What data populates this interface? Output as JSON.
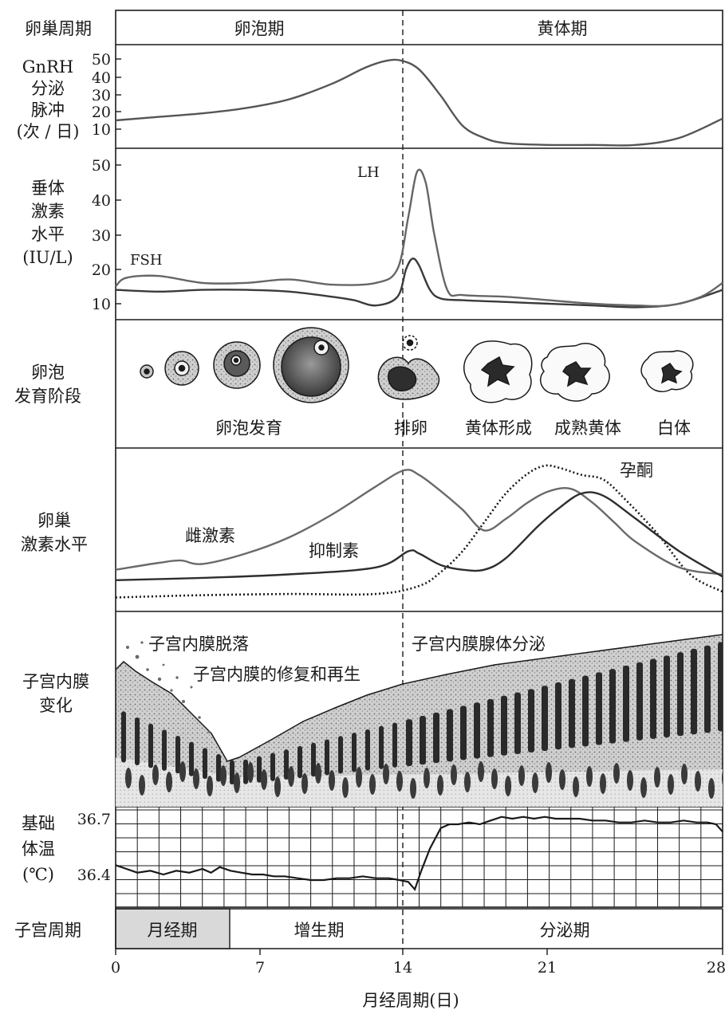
{
  "rows": {
    "ovarian_cycle": {
      "label": "卵巢周期",
      "follicular": "卵泡期",
      "luteal": "黄体期"
    },
    "gnrh": {
      "label_lines": [
        "GnRH",
        "分泌",
        "脉冲",
        "(次 / 日)"
      ],
      "ticks": [
        "50",
        "40",
        "30",
        "20",
        "10"
      ]
    },
    "pituitary": {
      "label_lines": [
        "垂体",
        "激素",
        "水平",
        "(IU/L)"
      ],
      "ticks": [
        "50",
        "40",
        "30",
        "20",
        "10"
      ],
      "lh_label": "LH",
      "fsh_label": "FSH"
    },
    "follicle": {
      "label_lines": [
        "卵泡",
        "发育阶段"
      ],
      "stage_labels": [
        "卵泡发育",
        "排卵",
        "黄体形成",
        "成熟黄体",
        "白体"
      ]
    },
    "ovarian_hormones": {
      "label_lines": [
        "卵巢",
        "激素水平"
      ],
      "estrogen_label": "雌激素",
      "inhibin_label": "抑制素",
      "progesterone_label": "孕酮"
    },
    "endometrium": {
      "label_lines": [
        "子宫内膜",
        "变化"
      ],
      "shedding": "子宫内膜脱落",
      "repair": "子宫内膜的修复和再生",
      "secretion": "子宫内膜腺体分泌"
    },
    "bbt": {
      "label_lines": [
        "基础",
        "体温",
        "(℃)"
      ],
      "ticks": [
        "36.7",
        "36.4"
      ]
    },
    "uterine_cycle": {
      "label": "子宫周期",
      "menstrual": "月经期",
      "proliferative": "增生期",
      "secretory": "分泌期"
    }
  },
  "x_axis": {
    "ticks": [
      "0",
      "7",
      "14",
      "21",
      "28"
    ],
    "label": "月经周期(日)"
  },
  "chart_data": {
    "type": "line",
    "x_range": [
      0,
      28
    ],
    "ovulation_day": 14,
    "gnrh_pulses": {
      "ylim": [
        0,
        55
      ],
      "x": [
        0,
        2,
        4,
        6,
        8,
        10,
        11.5,
        12.5,
        13.2,
        14,
        15,
        16,
        17,
        18,
        20,
        22,
        24,
        26,
        28
      ],
      "values": [
        15,
        17,
        19,
        22,
        27,
        36,
        45,
        49,
        49,
        44,
        29,
        12,
        5,
        2,
        1,
        1,
        1,
        5,
        16
      ]
    },
    "lh": {
      "name": "LH",
      "ylim": [
        5,
        55
      ],
      "x": [
        0,
        0.5,
        2,
        4,
        6,
        8,
        10,
        12,
        13,
        13.5,
        13.9,
        14.3,
        14.7,
        15.3,
        16,
        18,
        20,
        22,
        24,
        25.5,
        27,
        28
      ],
      "values": [
        15,
        17.5,
        18,
        16,
        16,
        17,
        15.5,
        16,
        20,
        35,
        48,
        45,
        30,
        14,
        12.5,
        12,
        11,
        10,
        9.5,
        9.5,
        12,
        16
      ]
    },
    "fsh": {
      "name": "FSH",
      "ylim": [
        5,
        55
      ],
      "x": [
        0,
        2,
        4,
        6,
        8,
        10,
        11,
        12,
        13,
        13.4,
        13.7,
        14,
        14.5,
        15,
        16,
        18,
        20,
        22,
        24,
        26,
        28
      ],
      "values": [
        14,
        13.5,
        14,
        14,
        13.5,
        12,
        11,
        9.5,
        12,
        20,
        23,
        21,
        14,
        11.5,
        11,
        10.5,
        10,
        9.5,
        9,
        10,
        14
      ]
    },
    "estrogen": {
      "name": "雌激素",
      "x": [
        0,
        2,
        3,
        4,
        6,
        8,
        10,
        12,
        13.3,
        14,
        15,
        16,
        17,
        18,
        19,
        20,
        21,
        22,
        23,
        24,
        26,
        28
      ],
      "values": [
        0.14,
        0.2,
        0.22,
        0.19,
        0.28,
        0.42,
        0.62,
        0.86,
        1.0,
        0.96,
        0.82,
        0.66,
        0.48,
        0.58,
        0.72,
        0.82,
        0.84,
        0.72,
        0.55,
        0.38,
        0.16,
        0.1
      ]
    },
    "inhibin": {
      "name": "抑制素",
      "x": [
        0,
        4,
        8,
        12,
        13.5,
        14,
        15,
        16,
        17,
        18,
        19.5,
        20.5,
        21.5,
        22.5,
        24,
        26,
        28
      ],
      "values": [
        0.05,
        0.07,
        0.1,
        0.16,
        0.3,
        0.28,
        0.18,
        0.14,
        0.14,
        0.24,
        0.52,
        0.68,
        0.8,
        0.78,
        0.58,
        0.3,
        0.08
      ]
    },
    "progesterone": {
      "name": "孕酮",
      "x": [
        0,
        4,
        8,
        12,
        14,
        15,
        16,
        17,
        18,
        19,
        19.8,
        20.5,
        21.5,
        22.5,
        23.5,
        25,
        26.5,
        28
      ],
      "values": [
        -0.1,
        -0.08,
        -0.07,
        -0.07,
        0.0,
        0.12,
        0.3,
        0.55,
        0.8,
        0.97,
        1.04,
        1.02,
        0.96,
        0.92,
        0.75,
        0.45,
        0.1,
        -0.05
      ]
    },
    "basal_body_temp": {
      "unit": "℃",
      "ylim": [
        36.3,
        36.75
      ],
      "x": [
        0,
        0.5,
        1,
        1.6,
        2.2,
        2.8,
        3.4,
        4,
        4.4,
        4.8,
        5.3,
        5.8,
        6.3,
        6.8,
        7.3,
        7.8,
        8.4,
        9,
        9.6,
        10.2,
        10.8,
        11.4,
        12,
        12.6,
        13.1,
        13.5,
        13.8,
        14.1,
        14.5,
        15,
        15.4,
        15.8,
        16.3,
        16.8,
        17.3,
        17.8,
        18.3,
        18.8,
        19.3,
        19.8,
        20.3,
        20.8,
        21.4,
        22,
        22.6,
        23.2,
        23.8,
        24.4,
        25,
        25.6,
        26.2,
        26.8,
        27.3,
        27.7,
        28
      ],
      "values": [
        36.45,
        36.43,
        36.41,
        36.42,
        36.4,
        36.42,
        36.41,
        36.43,
        36.41,
        36.44,
        36.42,
        36.41,
        36.4,
        36.4,
        36.39,
        36.39,
        36.38,
        36.37,
        36.37,
        36.38,
        36.38,
        36.39,
        36.38,
        36.38,
        36.37,
        36.36,
        36.32,
        36.42,
        36.54,
        36.65,
        36.67,
        36.67,
        36.68,
        36.67,
        36.69,
        36.71,
        36.7,
        36.71,
        36.7,
        36.71,
        36.7,
        36.7,
        36.7,
        36.69,
        36.69,
        36.68,
        36.68,
        36.69,
        36.68,
        36.68,
        36.69,
        36.68,
        36.68,
        36.67,
        36.63
      ]
    }
  }
}
